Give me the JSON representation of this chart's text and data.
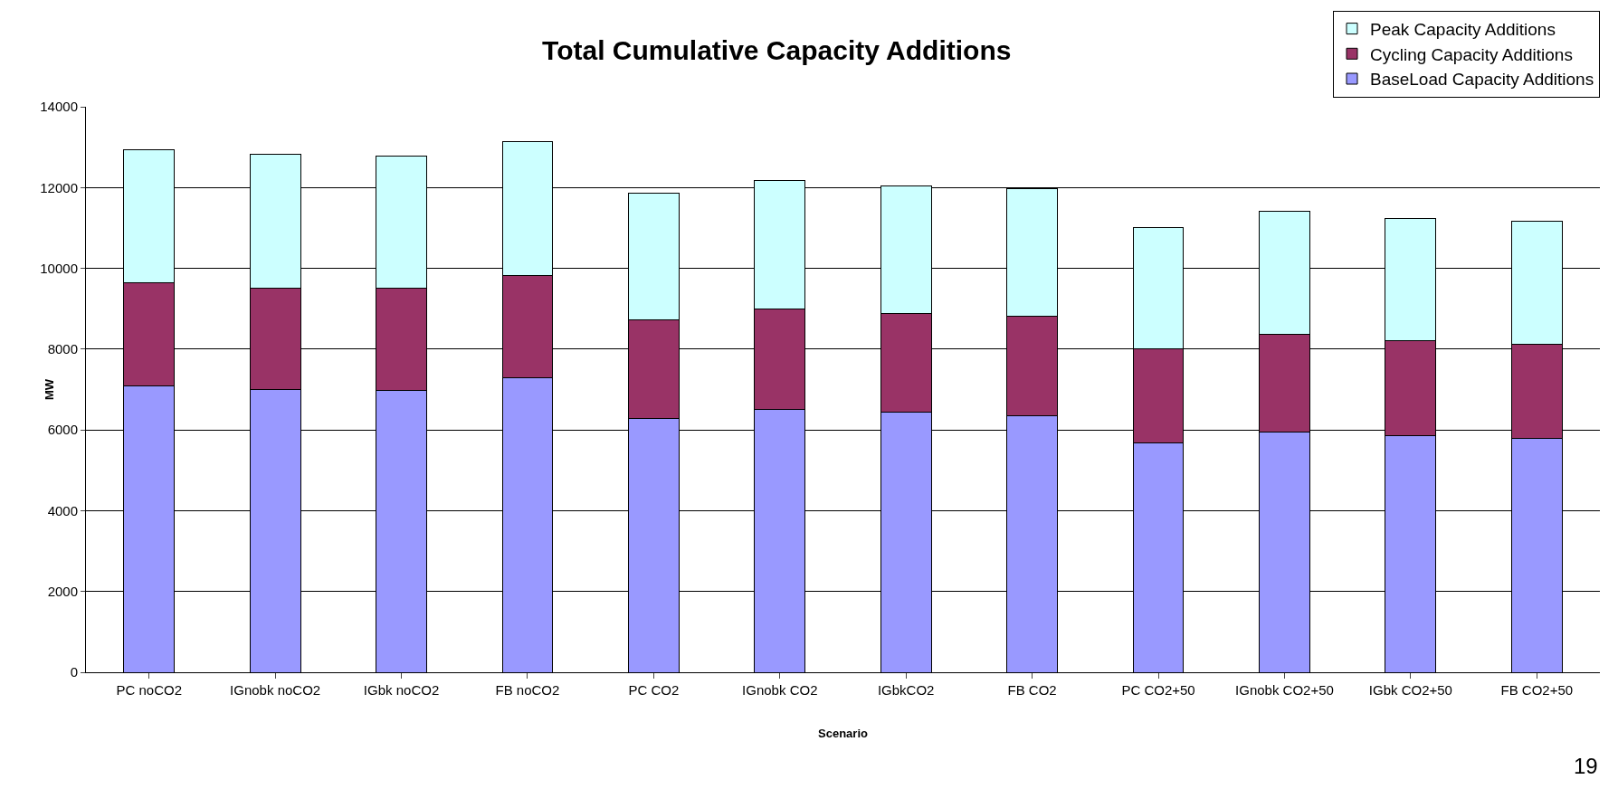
{
  "chart_data": {
    "type": "bar",
    "title": "Total Cumulative Capacity Additions",
    "xlabel": "Scenario",
    "ylabel": "MW",
    "stacked": true,
    "categories": [
      "PC noCO2",
      "IGnobk noCO2",
      "IGbk noCO2",
      "FB noCO2",
      "PC CO2",
      "IGnobk CO2",
      "IGbkCO2",
      "FB CO2",
      "PC CO2+50",
      "IGnobk CO2+50",
      "IGbk CO2+50",
      "FB CO2+50"
    ],
    "series": [
      {
        "name": "BaseLoad Capacity Additions",
        "color": "#9999ff",
        "values": [
          7100,
          7010,
          6970,
          7290,
          6290,
          6500,
          6430,
          6360,
          5670,
          5940,
          5850,
          5780
        ]
      },
      {
        "name": "Cycling Capacity Additions",
        "color": "#993366",
        "values": [
          2540,
          2490,
          2530,
          2530,
          2440,
          2500,
          2460,
          2460,
          2340,
          2420,
          2350,
          2350
        ]
      },
      {
        "name": "Peak Capacity Additions",
        "color": "#ccffff",
        "values": [
          3290,
          3320,
          3270,
          3320,
          3130,
          3170,
          3160,
          3160,
          3000,
          3060,
          3040,
          3040
        ]
      }
    ],
    "ylim": [
      0,
      14000
    ],
    "yticks": [
      0,
      2000,
      4000,
      6000,
      8000,
      10000,
      12000,
      14000
    ],
    "grid": "y",
    "legend": "top right",
    "annotations": [
      "19"
    ]
  }
}
